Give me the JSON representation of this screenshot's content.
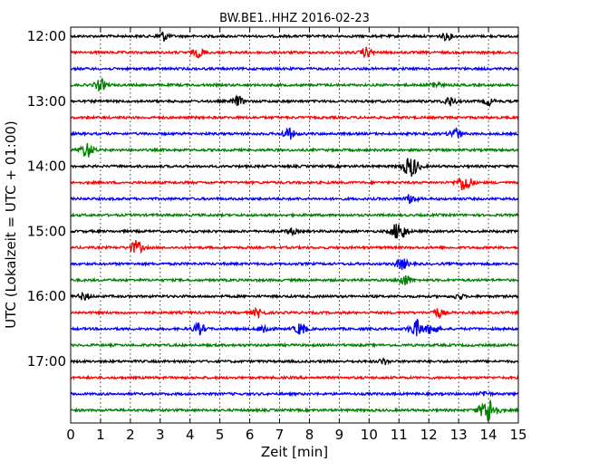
{
  "chart_data": {
    "type": "line",
    "title": "BW.BE1..HHZ 2016-02-23",
    "xlabel": "Zeit  [min]",
    "ylabel": "UTC (Lokalzeit = UTC + 01:00)",
    "xlim": [
      0,
      15
    ],
    "x_ticks": [
      "0",
      "1",
      "2",
      "3",
      "4",
      "5",
      "6",
      "7",
      "8",
      "9",
      "10",
      "11",
      "12",
      "13",
      "14",
      "15"
    ],
    "y_tick_labels": [
      "12:00",
      "13:00",
      "14:00",
      "15:00",
      "16:00",
      "17:00"
    ],
    "grid": "vertical dotted",
    "trace_color_cycle": [
      "#000000",
      "#ff0000",
      "#0000ff",
      "#008000"
    ],
    "series": [
      {
        "start": "12:00",
        "events": [
          {
            "t": 3.1,
            "a": 5
          },
          {
            "t": 12.6,
            "a": 4
          }
        ]
      },
      {
        "start": "12:15",
        "events": [
          {
            "t": 4.3,
            "a": 5
          },
          {
            "t": 9.9,
            "a": 5
          }
        ]
      },
      {
        "start": "12:30",
        "events": []
      },
      {
        "start": "12:45",
        "events": [
          {
            "t": 1.0,
            "a": 6
          },
          {
            "t": 12.2,
            "a": 4
          }
        ]
      },
      {
        "start": "13:00",
        "events": [
          {
            "t": 5.6,
            "a": 5
          },
          {
            "t": 12.7,
            "a": 5
          },
          {
            "t": 14.0,
            "a": 4
          }
        ]
      },
      {
        "start": "13:15",
        "events": []
      },
      {
        "start": "13:30",
        "events": [
          {
            "t": 7.3,
            "a": 6
          },
          {
            "t": 12.9,
            "a": 6
          }
        ]
      },
      {
        "start": "13:45",
        "events": [
          {
            "t": 0.55,
            "a": 8
          }
        ]
      },
      {
        "start": "14:00",
        "events": [
          {
            "t": 11.4,
            "a": 11
          }
        ]
      },
      {
        "start": "14:15",
        "events": [
          {
            "t": 13.2,
            "a": 9
          }
        ]
      },
      {
        "start": "14:30",
        "events": [
          {
            "t": 11.4,
            "a": 5
          }
        ]
      },
      {
        "start": "14:45",
        "events": []
      },
      {
        "start": "15:00",
        "events": [
          {
            "t": 11.0,
            "a": 10
          },
          {
            "t": 7.4,
            "a": 3
          }
        ]
      },
      {
        "start": "15:15",
        "events": [
          {
            "t": 2.2,
            "a": 7
          }
        ]
      },
      {
        "start": "15:30",
        "events": [
          {
            "t": 11.1,
            "a": 6
          }
        ]
      },
      {
        "start": "15:45",
        "events": [
          {
            "t": 11.2,
            "a": 6
          }
        ]
      },
      {
        "start": "16:00",
        "events": [
          {
            "t": 0.45,
            "a": 4
          },
          {
            "t": 13.0,
            "a": 3
          }
        ]
      },
      {
        "start": "16:15",
        "events": [
          {
            "t": 6.3,
            "a": 5
          },
          {
            "t": 12.3,
            "a": 5
          }
        ]
      },
      {
        "start": "16:30",
        "events": [
          {
            "t": 4.3,
            "a": 6
          },
          {
            "t": 6.5,
            "a": 5
          },
          {
            "t": 7.7,
            "a": 6
          },
          {
            "t": 11.6,
            "a": 9
          },
          {
            "t": 12.1,
            "a": 6
          }
        ]
      },
      {
        "start": "16:45",
        "events": []
      },
      {
        "start": "17:00",
        "events": [
          {
            "t": 10.5,
            "a": 3
          }
        ]
      },
      {
        "start": "17:15",
        "events": []
      },
      {
        "start": "17:30",
        "events": [
          {
            "t": 13.9,
            "a": 3
          }
        ]
      },
      {
        "start": "17:45",
        "events": [
          {
            "t": 14.0,
            "a": 13
          }
        ]
      }
    ]
  }
}
